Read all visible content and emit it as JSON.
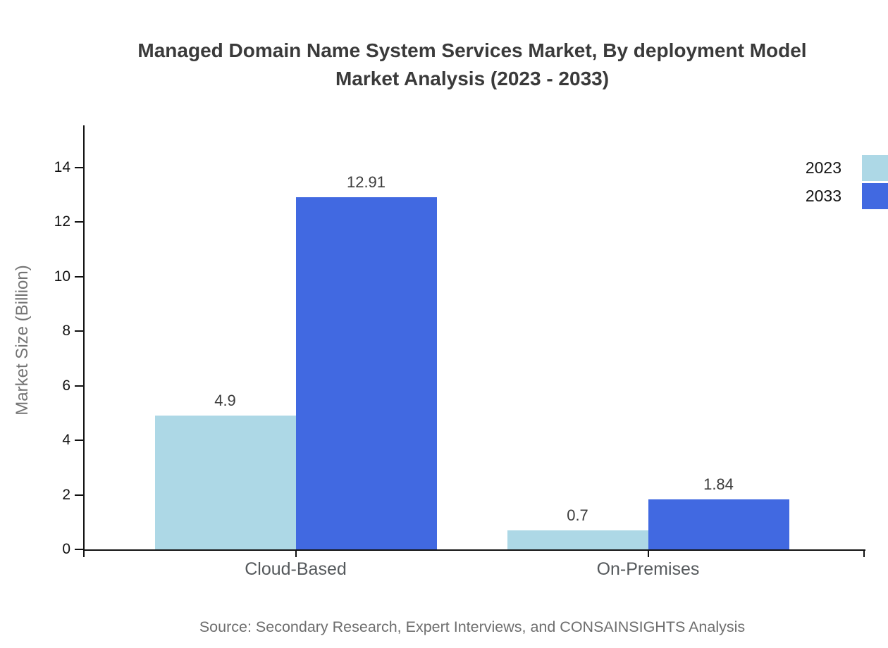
{
  "chart_data": {
    "type": "bar",
    "title": "Managed Domain Name System Services Market, By deployment Model Market Analysis (2023 - 2033)",
    "title_line1": "Managed Domain Name System Services Market, By deployment Model",
    "title_line2": "Market Analysis (2023 - 2033)",
    "categories": [
      "Cloud-Based",
      "On-Premises"
    ],
    "series": [
      {
        "name": "2023",
        "color": "#ADD8E6",
        "values": [
          4.9,
          0.7
        ],
        "labels": [
          "4.9",
          "0.7"
        ]
      },
      {
        "name": "2033",
        "color": "#4169E1",
        "values": [
          12.91,
          1.84
        ],
        "labels": [
          "12.91",
          "1.84"
        ]
      }
    ],
    "xlabel": "",
    "ylabel": "Market Size (Billion)",
    "ylim": [
      0,
      15.5
    ],
    "yticks": [
      0,
      2,
      4,
      6,
      8,
      10,
      12,
      14
    ],
    "grid": false,
    "legend_position": "top-right",
    "source": "Source: Secondary Research, Expert Interviews, and CONSAINSIGHTS Analysis",
    "colors": {
      "bar_2023": "#ADD8E6",
      "bar_2033": "#4169E1",
      "axis": "#111111",
      "title_text": "#3A3A3A",
      "tick_text": "#101010",
      "category_text": "#55595C",
      "value_text": "#3C3C3C",
      "muted_text": "#6E6E6E",
      "ylabel_text": "#747474"
    }
  }
}
